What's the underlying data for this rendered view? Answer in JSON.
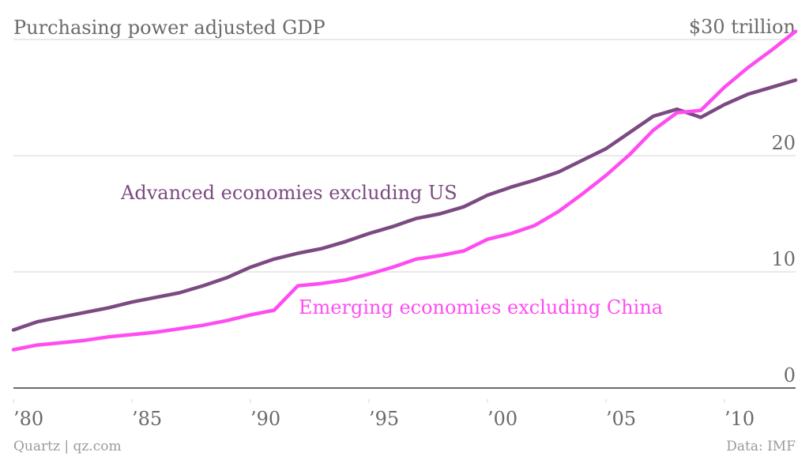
{
  "chart_data": {
    "type": "line",
    "title": "Purchasing power adjusted GDP",
    "xlabel": "",
    "ylabel": "",
    "y_unit_label": "$30 trillion",
    "ylim": [
      0,
      30
    ],
    "xlim": [
      1980,
      2013
    ],
    "grid": true,
    "y_ticks": [
      {
        "value": 0,
        "label": "0"
      },
      {
        "value": 10,
        "label": "10"
      },
      {
        "value": 20,
        "label": "20"
      },
      {
        "value": 30,
        "label": "$30 trillion"
      }
    ],
    "x_ticks": [
      {
        "value": 1980,
        "label": "’80"
      },
      {
        "value": 1985,
        "label": "’85"
      },
      {
        "value": 1990,
        "label": "’90"
      },
      {
        "value": 1995,
        "label": "’95"
      },
      {
        "value": 2000,
        "label": "’00"
      },
      {
        "value": 2005,
        "label": "’05"
      },
      {
        "value": 2010,
        "label": "’10"
      }
    ],
    "x": [
      1980,
      1981,
      1982,
      1983,
      1984,
      1985,
      1986,
      1987,
      1988,
      1989,
      1990,
      1991,
      1992,
      1993,
      1994,
      1995,
      1996,
      1997,
      1998,
      1999,
      2000,
      2001,
      2002,
      2003,
      2004,
      2005,
      2006,
      2007,
      2008,
      2009,
      2010,
      2011,
      2012,
      2013
    ],
    "series": [
      {
        "name": "Advanced economies excluding US",
        "color": "#7c4a82",
        "values": [
          5.0,
          5.7,
          6.1,
          6.5,
          6.9,
          7.4,
          7.8,
          8.2,
          8.8,
          9.5,
          10.4,
          11.1,
          11.6,
          12.0,
          12.6,
          13.3,
          13.9,
          14.6,
          15.0,
          15.6,
          16.6,
          17.3,
          17.9,
          18.6,
          19.6,
          20.6,
          22.0,
          23.4,
          24.0,
          23.3,
          24.4,
          25.3,
          25.9,
          26.5
        ]
      },
      {
        "name": "Emerging economies excluding China",
        "color": "#ff4cf2",
        "values": [
          3.3,
          3.7,
          3.9,
          4.1,
          4.4,
          4.6,
          4.8,
          5.1,
          5.4,
          5.8,
          6.3,
          6.7,
          8.8,
          9.0,
          9.3,
          9.8,
          10.4,
          11.1,
          11.4,
          11.8,
          12.8,
          13.3,
          14.0,
          15.2,
          16.7,
          18.3,
          20.1,
          22.2,
          23.7,
          23.9,
          25.9,
          27.6,
          29.1,
          30.7
        ]
      }
    ],
    "annotations": [
      {
        "text": "Advanced economies excluding US",
        "series": 0
      },
      {
        "text": "Emerging economies excluding China",
        "series": 1
      }
    ],
    "legend": "inline-labels"
  },
  "footer": {
    "source_left": "Quartz | qz.com",
    "source_right": "Data: IMF"
  }
}
